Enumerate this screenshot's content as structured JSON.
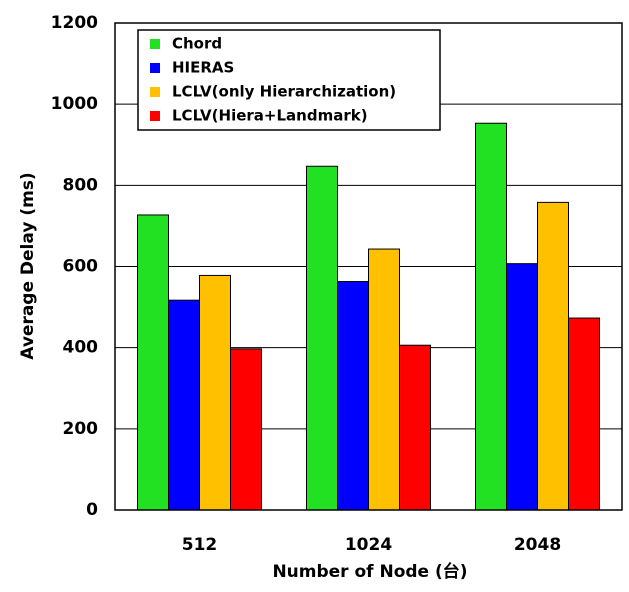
{
  "chart_data": {
    "type": "bar",
    "x_label": "Number of Node (台)",
    "y_label": "Average Delay (ms)",
    "categories": [
      "512",
      "1024",
      "2048"
    ],
    "series": [
      {
        "name": "Chord",
        "color": "#22e122",
        "values": [
          727,
          847,
          953
        ]
      },
      {
        "name": "HIERAS",
        "color": "#0000ff",
        "values": [
          517,
          563,
          607
        ]
      },
      {
        "name": "LCLV(only Hierarchization)",
        "color": "#ffc000",
        "values": [
          578,
          643,
          758
        ]
      },
      {
        "name": "LCLV(Hiera+Landmark)",
        "color": "#ff0000",
        "values": [
          397,
          406,
          473
        ]
      }
    ],
    "ylim": [
      0,
      1200
    ],
    "yticks": [
      0,
      200,
      400,
      600,
      800,
      1000,
      1200
    ],
    "grid": true,
    "legend": "top-left"
  }
}
